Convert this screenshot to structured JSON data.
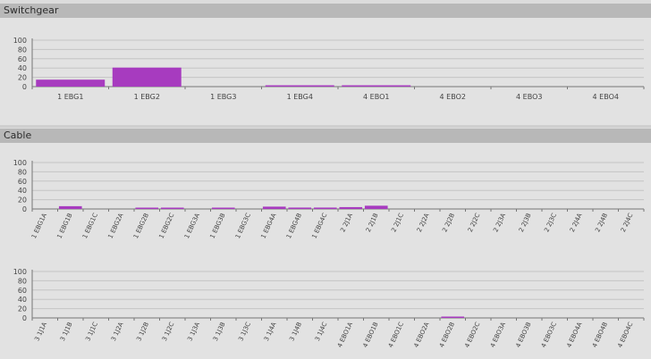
{
  "panels": {
    "switchgear": {
      "title": "Switchgear"
    },
    "cable": {
      "title": "Cable"
    }
  },
  "colors": {
    "bar": "#a73bbf",
    "grid": "#c4c4c4",
    "axis": "#777777",
    "header_bg": "#b8b8b8",
    "panel_bg": "#e2e2e2"
  },
  "chart_data": [
    {
      "type": "bar",
      "title": "",
      "xlabel": "",
      "ylabel": "",
      "ylim": [
        0,
        100
      ],
      "yticks": [
        0,
        20,
        40,
        60,
        80,
        100
      ],
      "grid": true,
      "categories": [
        "1 EBG1",
        "1 EBG2",
        "1 EBG3",
        "1 EBG4",
        "4 EBO1",
        "4 EBO2",
        "4 EBO3",
        "4 EBO4"
      ],
      "values": [
        15,
        41,
        0,
        1,
        1,
        0,
        0,
        0
      ]
    },
    {
      "type": "bar",
      "title": "",
      "xlabel": "",
      "ylabel": "",
      "ylim": [
        0,
        100
      ],
      "yticks": [
        0,
        20,
        40,
        60,
        80,
        100
      ],
      "grid": true,
      "categories": [
        "1 EBG1A",
        "1 EBG1B",
        "1 EBG1C",
        "1 EBG2A",
        "1 EBG2B",
        "1 EBG2C",
        "1 EBG3A",
        "1 EBG3B",
        "1 EBG3C",
        "1 EBG4A",
        "1 EBG4B",
        "1 EBG4C",
        "2 2J1A",
        "2 2J1B",
        "2 2J1C",
        "2 2J2A",
        "2 2J2B",
        "2 2J2C",
        "2 2J3A",
        "2 2J3B",
        "2 2J3C",
        "2 2J4A",
        "2 2J4B",
        "2 2J4C"
      ],
      "values": [
        0,
        6,
        0,
        0,
        2,
        1,
        0,
        2,
        0,
        5,
        3,
        3,
        4,
        7,
        0,
        0,
        0,
        0,
        0,
        0,
        0,
        0,
        0,
        0
      ]
    },
    {
      "type": "bar",
      "title": "",
      "xlabel": "",
      "ylabel": "",
      "ylim": [
        0,
        100
      ],
      "yticks": [
        0,
        20,
        40,
        60,
        80,
        100
      ],
      "grid": true,
      "categories": [
        "3 1J1A",
        "3 1J1B",
        "3 1J1C",
        "3 1J2A",
        "3 1J2B",
        "3 1J2C",
        "3 1J3A",
        "3 1J3B",
        "3 1J3C",
        "3 1J4A",
        "3 1J4B",
        "3 1J4C",
        "4 EBO1A",
        "4 EBO1B",
        "4 EBO1C",
        "4 EBO2A",
        "4 EBO2B",
        "4 EBO2C",
        "4 EBO3A",
        "4 EBO3B",
        "4 EBO3C",
        "4 EBO4A",
        "4 EBO4B",
        "4 EBO4C"
      ],
      "values": [
        0,
        0,
        0,
        0,
        0,
        0,
        0,
        0,
        0,
        0,
        0,
        0,
        0,
        0,
        0,
        0,
        1,
        0,
        0,
        0,
        0,
        0,
        0,
        0
      ]
    }
  ]
}
